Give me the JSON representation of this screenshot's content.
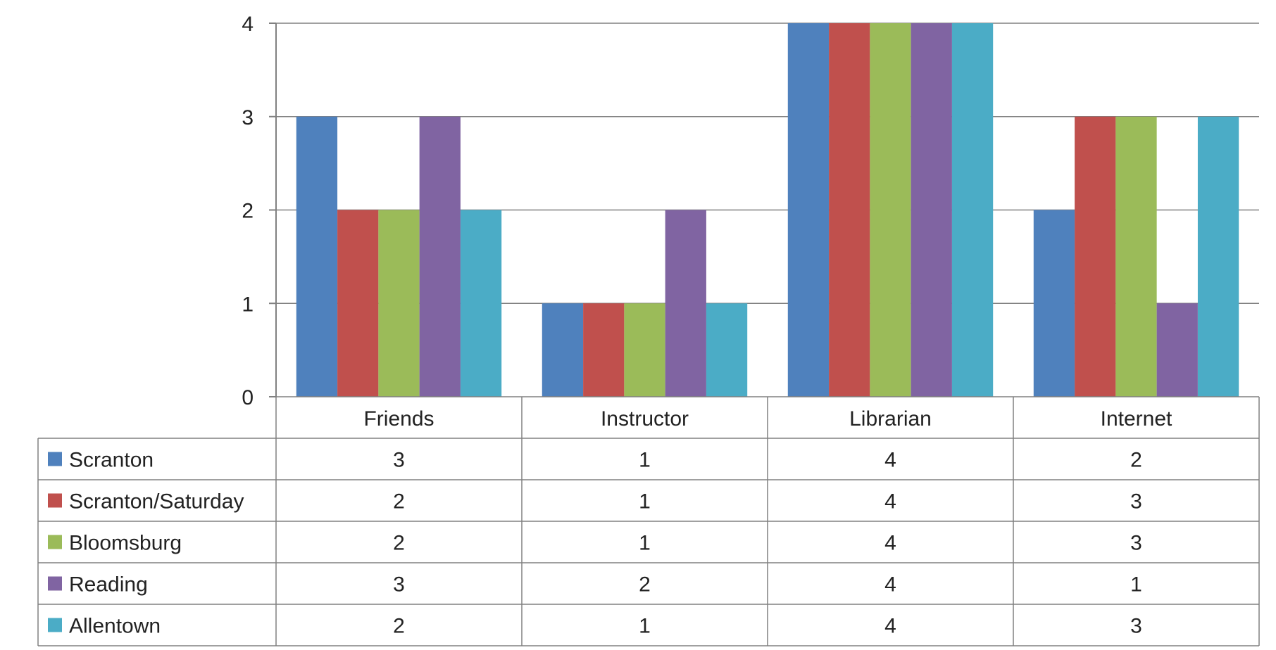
{
  "chart_data": {
    "type": "bar",
    "categories": [
      "Friends",
      "Instructor",
      "Librarian",
      "Internet"
    ],
    "series": [
      {
        "name": "Scranton",
        "values": [
          3,
          1,
          4,
          2
        ],
        "color": "#4F81BD"
      },
      {
        "name": "Scranton/Saturday",
        "values": [
          2,
          1,
          4,
          3
        ],
        "color": "#C0504D"
      },
      {
        "name": "Bloomsburg",
        "values": [
          2,
          1,
          4,
          3
        ],
        "color": "#9BBB59"
      },
      {
        "name": "Reading",
        "values": [
          3,
          2,
          4,
          1
        ],
        "color": "#8064A2"
      },
      {
        "name": "Allentown",
        "values": [
          2,
          1,
          4,
          3
        ],
        "color": "#4BACC6"
      }
    ],
    "ylim": [
      0,
      4
    ],
    "yticks": [
      "0",
      "1",
      "2",
      "3",
      "4"
    ],
    "grid": true,
    "data_table": true,
    "legend": "data-table-keys"
  }
}
